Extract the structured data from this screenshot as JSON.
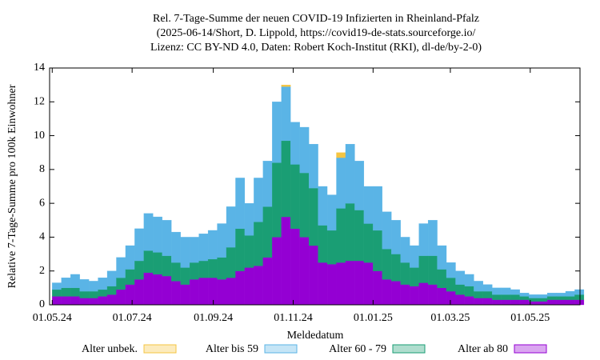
{
  "chart_data": {
    "type": "stacked-bar",
    "title": "Rel. 7-Tage-Summe der neuen COVID-19 Infizierten in Rheinland-Pfalz",
    "subtitle": "(2025-06-14/Short, D. Lippold, https://covid19-de-stats.sourceforge.io/",
    "license": "Lizenz: CC BY-ND 4.0, Daten: Robert Koch-Institut (RKI), dl-de/by-2-0)",
    "x_label": "Meldedatum",
    "y_label": "Relative 7-Tage-Summe pro 100k Einwohner",
    "x": [
      "2024-05-01",
      "2024-05-08",
      "2024-05-15",
      "2024-05-22",
      "2024-05-29",
      "2024-06-05",
      "2024-06-12",
      "2024-06-19",
      "2024-06-26",
      "2024-07-03",
      "2024-07-10",
      "2024-07-17",
      "2024-07-24",
      "2024-07-31",
      "2024-08-07",
      "2024-08-14",
      "2024-08-21",
      "2024-08-28",
      "2024-09-04",
      "2024-09-11",
      "2024-09-18",
      "2024-09-25",
      "2024-10-02",
      "2024-10-09",
      "2024-10-16",
      "2024-10-23",
      "2024-10-30",
      "2024-11-06",
      "2024-11-13",
      "2024-11-20",
      "2024-11-27",
      "2024-12-04",
      "2024-12-11",
      "2024-12-18",
      "2024-12-25",
      "2025-01-01",
      "2025-01-08",
      "2025-01-15",
      "2025-01-22",
      "2025-01-29",
      "2025-02-05",
      "2025-02-12",
      "2025-02-19",
      "2025-02-26",
      "2025-03-05",
      "2025-03-12",
      "2025-03-19",
      "2025-03-26",
      "2025-04-02",
      "2025-04-09",
      "2025-04-16",
      "2025-04-23",
      "2025-04-30",
      "2025-05-07",
      "2025-05-14",
      "2025-05-21",
      "2025-05-28",
      "2025-06-04"
    ],
    "series": [
      {
        "name": "Alter unbek.",
        "color": "#f5c542",
        "values": [
          0,
          0,
          0,
          0,
          0,
          0,
          0,
          0,
          0,
          0,
          0,
          0,
          0,
          0,
          0,
          0,
          0,
          0,
          0,
          0,
          0,
          0,
          0,
          0,
          0,
          0.1,
          0,
          0,
          0,
          0,
          0,
          0.3,
          0,
          0,
          0,
          0,
          0,
          0,
          0,
          0,
          0,
          0,
          0,
          0,
          0,
          0,
          0,
          0,
          0,
          0,
          0,
          0,
          0,
          0,
          0,
          0,
          0,
          0
        ]
      },
      {
        "name": "Alter bis 59",
        "color": "#5ab4e6",
        "values": [
          0.4,
          0.6,
          0.8,
          0.7,
          0.6,
          0.7,
          0.9,
          1.2,
          1.4,
          1.9,
          2.2,
          2.1,
          2.1,
          1.8,
          1.8,
          1.5,
          1.6,
          1.7,
          2.0,
          2.4,
          3.0,
          1.9,
          2.6,
          2.7,
          3.6,
          3.2,
          2.5,
          2.7,
          2.6,
          2.3,
          2.1,
          3.0,
          3.5,
          2.9,
          2.2,
          2.6,
          2.2,
          2.0,
          1.5,
          1.3,
          1.9,
          2.1,
          1.4,
          0.9,
          0.8,
          0.7,
          0.6,
          0.4,
          0.4,
          0.4,
          0.3,
          0.2,
          0.2,
          0.2,
          0.2,
          0.2,
          0.3,
          0.3
        ]
      },
      {
        "name": "Alter 60 - 79",
        "color": "#1a9e74",
        "values": [
          0.4,
          0.5,
          0.5,
          0.4,
          0.4,
          0.4,
          0.5,
          0.7,
          0.9,
          1.1,
          1.3,
          1.3,
          1.2,
          1.1,
          1.0,
          1.0,
          1.0,
          1.1,
          1.3,
          1.8,
          2.5,
          1.9,
          2.6,
          3.0,
          4.4,
          4.5,
          3.8,
          3.8,
          3.4,
          2.2,
          2.0,
          3.2,
          3.4,
          3.0,
          2.3,
          2.4,
          1.8,
          1.6,
          1.3,
          1.1,
          1.6,
          1.7,
          1.1,
          0.8,
          0.6,
          0.6,
          0.4,
          0.4,
          0.3,
          0.3,
          0.3,
          0.2,
          0.2,
          0.2,
          0.2,
          0.2,
          0.2,
          0.3
        ]
      },
      {
        "name": "Alter ab 80",
        "color": "#9400d3",
        "values": [
          0.5,
          0.5,
          0.5,
          0.4,
          0.4,
          0.5,
          0.6,
          0.9,
          1.2,
          1.5,
          1.9,
          1.8,
          1.7,
          1.4,
          1.2,
          1.5,
          1.6,
          1.6,
          1.5,
          1.6,
          2.0,
          2.2,
          2.3,
          2.8,
          4.0,
          5.2,
          4.5,
          4.0,
          3.5,
          2.5,
          2.4,
          2.5,
          2.6,
          2.6,
          2.5,
          2.0,
          1.5,
          1.4,
          1.2,
          1.1,
          1.3,
          1.2,
          1.0,
          0.8,
          0.6,
          0.5,
          0.4,
          0.4,
          0.3,
          0.3,
          0.3,
          0.3,
          0.2,
          0.2,
          0.3,
          0.3,
          0.3,
          0.3
        ]
      }
    ],
    "xlim": [
      "2024-04-29",
      "2025-06-08"
    ],
    "xticks": [
      {
        "value": "2024-05-01",
        "label": "01.05.24"
      },
      {
        "value": "2024-07-01",
        "label": "01.07.24"
      },
      {
        "value": "2024-09-01",
        "label": "01.09.24"
      },
      {
        "value": "2024-11-01",
        "label": "01.11.24"
      },
      {
        "value": "2025-01-01",
        "label": "01.01.25"
      },
      {
        "value": "2025-03-01",
        "label": "01.03.25"
      },
      {
        "value": "2025-05-01",
        "label": "01.05.25"
      }
    ],
    "ylim": [
      0,
      14
    ],
    "yticks": [
      0,
      2,
      4,
      6,
      8,
      10,
      12,
      14
    ]
  }
}
